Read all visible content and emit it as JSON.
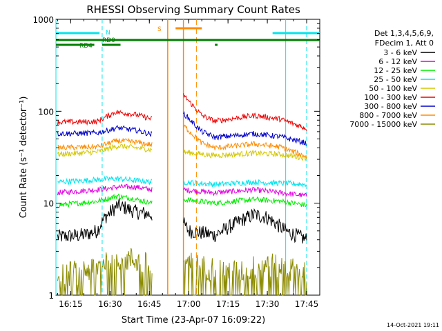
{
  "chart_data": {
    "type": "line",
    "title": "RHESSI Observing Summary Count Rates",
    "xlabel": "Start Time (23-Apr-07 16:09:22)",
    "ylabel": "Count Rate (s⁻¹ detector⁻¹)",
    "x_ticks": [
      "16:15",
      "16:30",
      "16:45",
      "17:00",
      "17:15",
      "17:30",
      "17:45"
    ],
    "y_ticks": [
      "1",
      "10",
      "100",
      "1000"
    ],
    "xlim": [
      "16:09:22",
      "17:50"
    ],
    "ylim": [
      1,
      1000
    ],
    "y_scale": "log",
    "legend_header": [
      "Det 1,3,4,5,6,9,",
      "FDecim 1, Att 0"
    ],
    "timestamp": "14-Oct-2021 19:11",
    "flags": [
      {
        "label": "N",
        "color": "#00e5ee",
        "segments": [
          [
            "16:09:22",
            "16:26"
          ],
          [
            "17:32",
            "17:50"
          ]
        ]
      },
      {
        "label": "RD0",
        "color": "#007f00",
        "segments": [
          [
            "16:09:22",
            "17:50"
          ]
        ]
      },
      {
        "label": "RD4",
        "color": "#007f00",
        "segments": [
          [
            "16:09:22",
            "16:24"
          ],
          [
            "16:27",
            "16:34"
          ],
          [
            "17:10",
            "17:11"
          ]
        ]
      },
      {
        "label": "S",
        "color": "#ff8c00",
        "segments": [
          [
            "16:55",
            "17:05"
          ]
        ]
      }
    ],
    "markers": {
      "cyan_solid": [
        "16:09:22",
        "17:37"
      ],
      "cyan_dashed": [
        "16:27",
        "17:45"
      ],
      "orange_solid": [
        "16:52",
        "16:58"
      ],
      "orange_dashed": [
        "17:03"
      ]
    },
    "series": [
      {
        "name": "3 - 6 keV",
        "color": "#000000",
        "x": [
          "16:10",
          "16:20",
          "16:25",
          "16:28",
          "16:33",
          "16:40",
          "16:46",
          "16:58",
          "17:00",
          "17:10",
          "17:20",
          "17:25",
          "17:30",
          "17:37",
          "17:45"
        ],
        "y": [
          4.3,
          4.5,
          5.0,
          7.0,
          9.5,
          8.0,
          7.5,
          6.0,
          5.0,
          4.5,
          6.5,
          7.5,
          7.0,
          5.0,
          4.0
        ]
      },
      {
        "name": "6 - 12 keV",
        "color": "#e000e0",
        "x": [
          "16:10",
          "16:25",
          "16:33",
          "16:40",
          "16:46",
          "16:58",
          "17:10",
          "17:25",
          "17:35",
          "17:45"
        ],
        "y": [
          13,
          14,
          15,
          15,
          14,
          14,
          13,
          14,
          13,
          12
        ]
      },
      {
        "name": "12 - 25 keV",
        "color": "#00ee00",
        "x": [
          "16:10",
          "16:25",
          "16:33",
          "16:40",
          "16:46",
          "16:58",
          "17:10",
          "17:25",
          "17:35",
          "17:45"
        ],
        "y": [
          9.5,
          10.5,
          12,
          11,
          10,
          11,
          10,
          11,
          10.5,
          9.5
        ]
      },
      {
        "name": "25 - 50 keV",
        "color": "#00e5ee",
        "x": [
          "16:10",
          "16:25",
          "16:33",
          "16:46",
          "16:58",
          "17:10",
          "17:25",
          "17:35",
          "17:45"
        ],
        "y": [
          17,
          18,
          18.5,
          17,
          17,
          16,
          17,
          16.5,
          16
        ]
      },
      {
        "name": "50 - 100 keV",
        "color": "#d4c800",
        "x": [
          "16:10",
          "16:25",
          "16:33",
          "16:40",
          "16:46",
          "16:58",
          "17:10",
          "17:25",
          "17:35",
          "17:45"
        ],
        "y": [
          34,
          36,
          42,
          40,
          38,
          36,
          33,
          35,
          34,
          31
        ]
      },
      {
        "name": "100 - 300 keV",
        "color": "#ee0000",
        "x": [
          "16:10",
          "16:25",
          "16:32",
          "16:40",
          "16:46",
          "16:58",
          "17:05",
          "17:10",
          "17:25",
          "17:35",
          "17:45"
        ],
        "y": [
          76,
          77,
          98,
          92,
          82,
          150,
          90,
          78,
          90,
          82,
          65
        ]
      },
      {
        "name": "300 - 800 keV",
        "color": "#0000cc",
        "x": [
          "16:10",
          "16:25",
          "16:33",
          "16:40",
          "16:46",
          "16:58",
          "17:05",
          "17:10",
          "17:25",
          "17:35",
          "17:45"
        ],
        "y": [
          57,
          58,
          66,
          62,
          56,
          95,
          60,
          52,
          57,
          53,
          45
        ]
      },
      {
        "name": "800 - 7000 keV",
        "color": "#ff8c00",
        "x": [
          "16:10",
          "16:25",
          "16:33",
          "16:40",
          "16:46",
          "16:58",
          "17:05",
          "17:10",
          "17:25",
          "17:35",
          "17:45"
        ],
        "y": [
          40,
          41,
          48,
          46,
          43,
          70,
          45,
          40,
          44,
          41,
          32
        ]
      },
      {
        "name": "7000 - 15000 keV",
        "color": "#8b8b00",
        "x": [
          "16:10",
          "16:25",
          "16:30",
          "16:40",
          "16:46",
          "16:58",
          "17:05",
          "17:20",
          "17:30",
          "17:45"
        ],
        "y": [
          1.6,
          2.0,
          2.6,
          2.4,
          2.0,
          2.3,
          2.0,
          1.8,
          2.2,
          1.7
        ]
      }
    ]
  }
}
